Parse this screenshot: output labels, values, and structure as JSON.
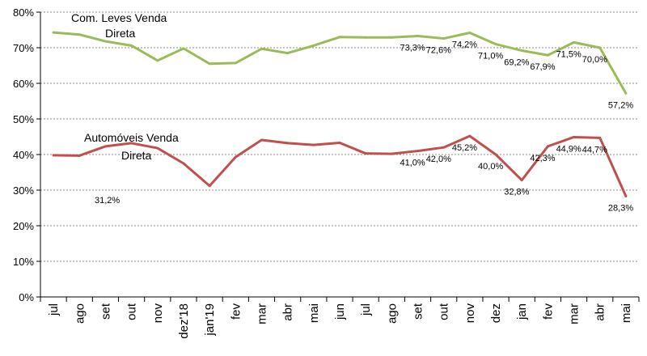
{
  "chart_data": {
    "type": "line",
    "title": "",
    "xlabel": "",
    "ylabel": "",
    "ylim": [
      0,
      80
    ],
    "yticks": [
      "0%",
      "10%",
      "20%",
      "30%",
      "40%",
      "50%",
      "60%",
      "70%",
      "80%"
    ],
    "grid": "horizontal dashed",
    "categories": [
      "jul",
      "ago",
      "set",
      "out",
      "nov",
      "dez'18",
      "jan'19",
      "fev",
      "mar",
      "abr",
      "mai",
      "jun",
      "jul",
      "ago",
      "set",
      "out",
      "nov",
      "dez",
      "jan",
      "fev",
      "mar",
      "abr",
      "mai"
    ],
    "series": [
      {
        "name": "Com. Leves Venda Direta",
        "name_lines": [
          "Com. Leves Venda",
          "Direta"
        ],
        "color": "#9bbb59",
        "values": [
          74.3,
          73.7,
          71.8,
          70.6,
          66.4,
          69.8,
          65.5,
          65.7,
          69.7,
          68.5,
          70.6,
          73.0,
          72.9,
          72.9,
          73.3,
          72.6,
          74.2,
          71.0,
          69.2,
          67.9,
          71.5,
          70.0,
          57.2
        ],
        "labels": {
          "14": "73,3%",
          "15": "72,6%",
          "16": "74,2%",
          "17": "71,0%",
          "18": "69,2%",
          "19": "67,9%",
          "20": "71,5%",
          "21": "70,0%",
          "22": "57,2%"
        }
      },
      {
        "name": "Automóveis Venda Direta",
        "name_lines": [
          "Automóveis Venda",
          "Direta"
        ],
        "color": "#c0504d",
        "values": [
          39.8,
          39.7,
          42.3,
          43.2,
          41.8,
          37.5,
          31.2,
          39.3,
          44.1,
          43.2,
          42.7,
          43.3,
          40.3,
          40.2,
          41.0,
          42.0,
          45.2,
          40.0,
          32.8,
          42.3,
          44.9,
          44.7,
          28.3
        ],
        "labels": {
          "6": "31,2%",
          "14": "41,0%",
          "15": "42,0%",
          "16": "45,2%",
          "17": "40,0%",
          "18": "32,8%",
          "19": "42,3%",
          "20": "44,9%",
          "21": "44,7%",
          "22": "28,3%"
        }
      }
    ]
  }
}
